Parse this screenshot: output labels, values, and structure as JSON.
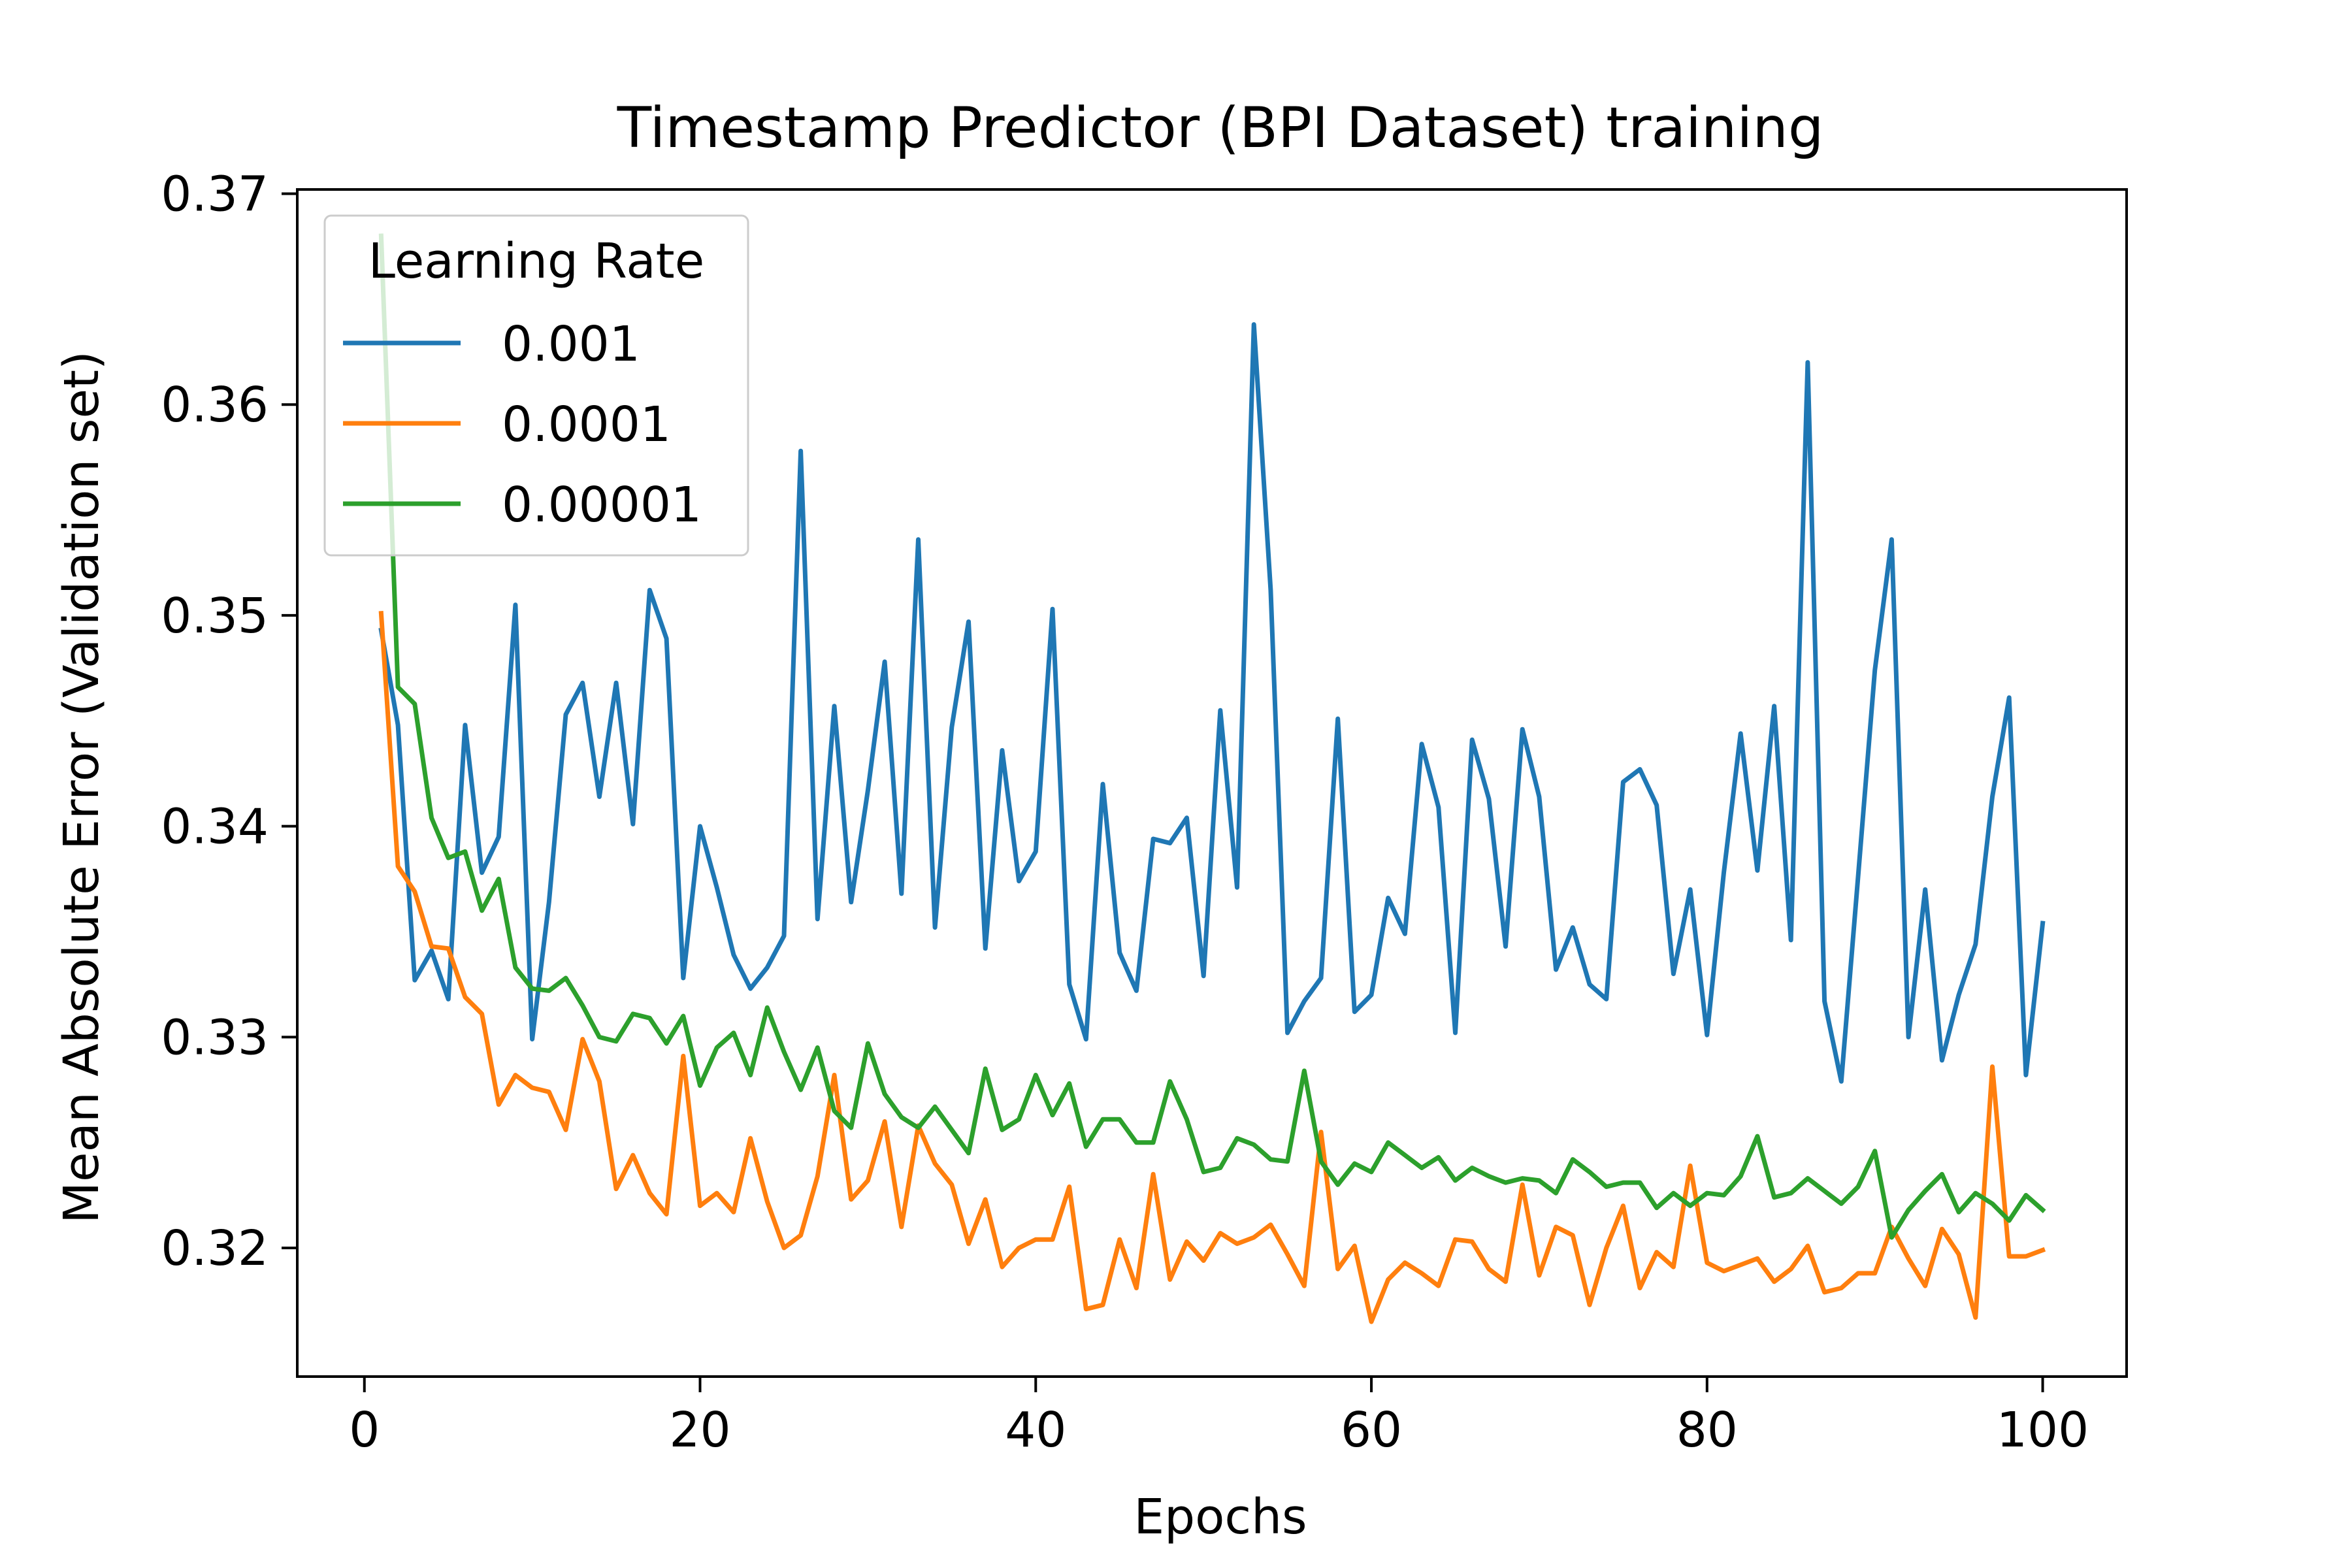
{
  "chart_data": {
    "type": "line",
    "title": "Timestamp Predictor (BPI Dataset) training",
    "xlabel": "Epochs",
    "ylabel": "Mean Absolute Error (Validation set)",
    "xlim": [
      -4,
      105
    ],
    "ylim": [
      0.3139,
      0.3702
    ],
    "xticks": [
      0,
      20,
      40,
      60,
      80,
      100
    ],
    "xtick_labels": [
      "0",
      "20",
      "40",
      "60",
      "80",
      "100"
    ],
    "yticks": [
      0.32,
      0.33,
      0.34,
      0.35,
      0.36,
      0.37
    ],
    "ytick_labels": [
      "0.32",
      "0.33",
      "0.34",
      "0.35",
      "0.36",
      "0.37"
    ],
    "grid": false,
    "legend": {
      "title": "Learning Rate",
      "placement": "upper-left"
    },
    "series": [
      {
        "name": "0.001",
        "color": "#1f77b4",
        "x_start": 1,
        "values": [
          0.3493,
          0.3448,
          0.3327,
          0.3341,
          0.3318,
          0.3448,
          0.3378,
          0.3395,
          0.3505,
          0.3299,
          0.3364,
          0.3453,
          0.3468,
          0.3414,
          0.3468,
          0.3401,
          0.3512,
          0.3489,
          0.3328,
          0.34,
          0.3371,
          0.3339,
          0.3323,
          0.3333,
          0.3348,
          0.3578,
          0.3356,
          0.3457,
          0.3364,
          0.3417,
          0.3478,
          0.3368,
          0.3536,
          0.3352,
          0.3447,
          0.3497,
          0.3342,
          0.3436,
          0.3374,
          0.3388,
          0.3503,
          0.3325,
          0.3299,
          0.342,
          0.334,
          0.3322,
          0.3394,
          0.3392,
          0.3404,
          0.3329,
          0.3455,
          0.3371,
          0.3638,
          0.3512,
          0.3302,
          0.3317,
          0.3328,
          0.3451,
          0.3312,
          0.332,
          0.3366,
          0.3349,
          0.3439,
          0.3409,
          0.3302,
          0.3441,
          0.3413,
          0.3343,
          0.3446,
          0.3414,
          0.3332,
          0.3352,
          0.3325,
          0.3318,
          0.3421,
          0.3427,
          0.341,
          0.333,
          0.337,
          0.3301,
          0.3378,
          0.3444,
          0.3379,
          0.3457,
          0.3346,
          0.362,
          0.3317,
          0.3279,
          0.3376,
          0.3474,
          0.3536,
          0.33,
          0.337,
          0.3289,
          0.332,
          0.3344,
          0.3414,
          0.3461,
          0.3282,
          0.3354
        ]
      },
      {
        "name": "0.0001",
        "color": "#ff7f0e",
        "x_start": 1,
        "values": [
          0.3501,
          0.3381,
          0.3369,
          0.3343,
          0.3342,
          0.3319,
          0.3311,
          0.3268,
          0.3282,
          0.3276,
          0.3274,
          0.3256,
          0.3299,
          0.3279,
          0.3228,
          0.3244,
          0.3226,
          0.3216,
          0.3291,
          0.322,
          0.3226,
          0.3217,
          0.3252,
          0.3222,
          0.32,
          0.3206,
          0.3234,
          0.3282,
          0.3223,
          0.3232,
          0.326,
          0.321,
          0.3258,
          0.324,
          0.323,
          0.3202,
          0.3223,
          0.3191,
          0.32,
          0.3204,
          0.3204,
          0.3229,
          0.3171,
          0.3173,
          0.3204,
          0.3181,
          0.3235,
          0.3185,
          0.3203,
          0.3194,
          0.3207,
          0.3202,
          0.3205,
          0.3211,
          0.3197,
          0.3182,
          0.3255,
          0.319,
          0.3201,
          0.3165,
          0.3185,
          0.3193,
          0.3188,
          0.3182,
          0.3204,
          0.3203,
          0.319,
          0.3184,
          0.323,
          0.3187,
          0.321,
          0.3206,
          0.3173,
          0.32,
          0.322,
          0.3181,
          0.3198,
          0.3191,
          0.3239,
          0.3193,
          0.3189,
          0.3192,
          0.3195,
          0.3184,
          0.319,
          0.3201,
          0.3179,
          0.3181,
          0.3188,
          0.3188,
          0.321,
          0.3195,
          0.3182,
          0.3209,
          0.3197,
          0.3167,
          0.3286,
          0.3196,
          0.3196,
          0.3199
        ]
      },
      {
        "name": "0.00001",
        "color": "#2ca02c",
        "x_start": 1,
        "values": [
          0.368,
          0.3466,
          0.3458,
          0.3404,
          0.3385,
          0.3388,
          0.336,
          0.3375,
          0.3333,
          0.3323,
          0.3322,
          0.3328,
          0.3315,
          0.33,
          0.3298,
          0.3311,
          0.3309,
          0.3297,
          0.331,
          0.3277,
          0.3295,
          0.3302,
          0.3282,
          0.3314,
          0.3293,
          0.3275,
          0.3295,
          0.3265,
          0.3257,
          0.3297,
          0.3273,
          0.3262,
          0.3257,
          0.3267,
          0.3256,
          0.3245,
          0.3285,
          0.3256,
          0.3261,
          0.3282,
          0.3263,
          0.3278,
          0.3248,
          0.3261,
          0.3261,
          0.325,
          0.325,
          0.3279,
          0.3261,
          0.3236,
          0.3238,
          0.3252,
          0.3249,
          0.3242,
          0.3241,
          0.3284,
          0.3241,
          0.323,
          0.324,
          0.3236,
          0.325,
          0.3244,
          0.3238,
          0.3243,
          0.3232,
          0.3238,
          0.3234,
          0.3231,
          0.3233,
          0.3232,
          0.3226,
          0.3242,
          0.3236,
          0.3229,
          0.3231,
          0.3231,
          0.3219,
          0.3226,
          0.322,
          0.3226,
          0.3225,
          0.3234,
          0.3253,
          0.3224,
          0.3226,
          0.3233,
          0.3227,
          0.3221,
          0.3229,
          0.3246,
          0.3205,
          0.3218,
          0.3227,
          0.3235,
          0.3217,
          0.3226,
          0.3221,
          0.3213,
          0.3225,
          0.3218
        ]
      }
    ]
  }
}
